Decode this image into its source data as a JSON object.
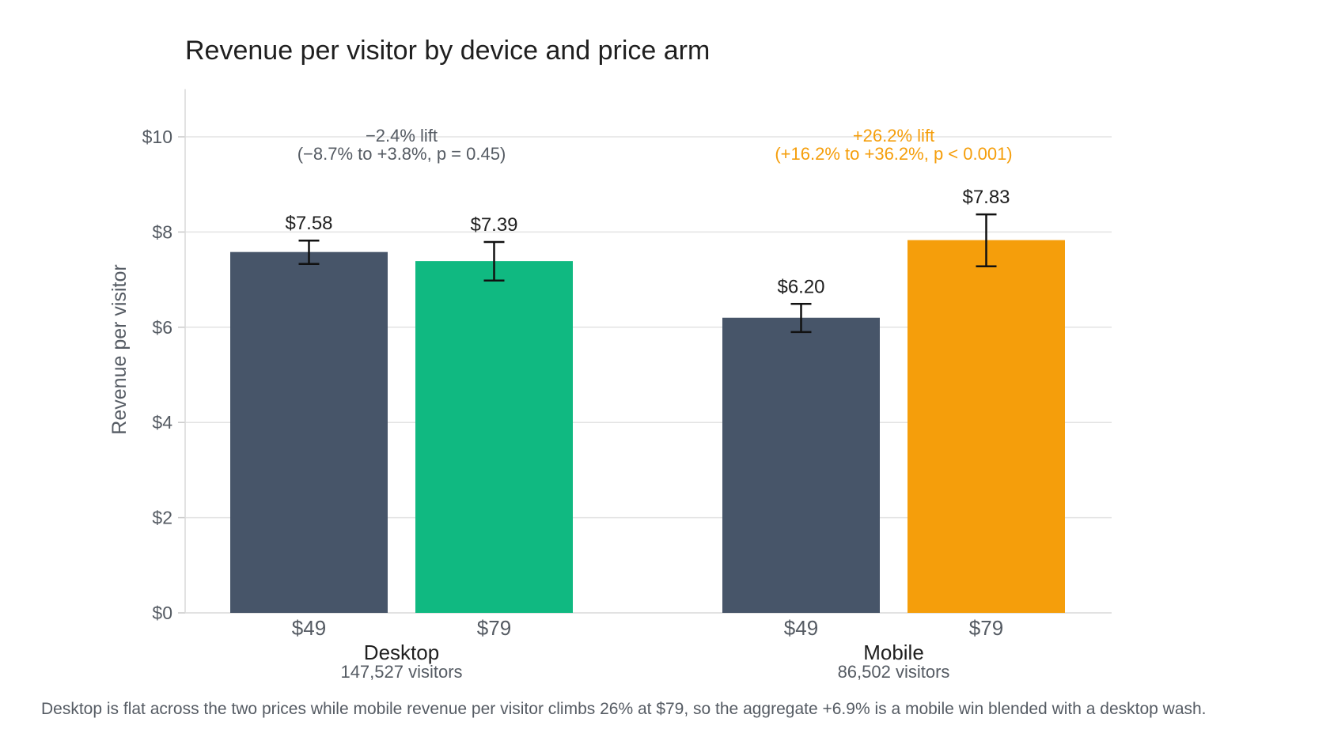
{
  "chart_data": {
    "type": "bar",
    "title": "Revenue per visitor by device and price arm",
    "ylabel": "Revenue per visitor",
    "ylim": [
      0,
      11
    ],
    "yticks": [
      0,
      2,
      4,
      6,
      8,
      10
    ],
    "ytick_labels": [
      "$0",
      "$2",
      "$4",
      "$6",
      "$8",
      "$10"
    ],
    "grid": true,
    "groups": [
      {
        "name": "Desktop",
        "subtitle": "147,527 visitors",
        "annotation": {
          "line1": "−2.4% lift",
          "line2": "(−8.7% to +3.8%, p = 0.45)",
          "color": "#555b63"
        },
        "bars": [
          {
            "arm": "$49",
            "value": 7.58,
            "ci": [
              7.33,
              7.82
            ],
            "label": "$7.58",
            "color": "#475569"
          },
          {
            "arm": "$79",
            "value": 7.39,
            "ci": [
              6.98,
              7.79
            ],
            "label": "$7.39",
            "color": "#10b981"
          }
        ]
      },
      {
        "name": "Mobile",
        "subtitle": "86,502 visitors",
        "annotation": {
          "line1": "+26.2% lift",
          "line2": "(+16.2% to +36.2%, p < 0.001)",
          "color": "#f59e0b"
        },
        "bars": [
          {
            "arm": "$49",
            "value": 6.2,
            "ci": [
              5.9,
              6.49
            ],
            "label": "$6.20",
            "color": "#475569"
          },
          {
            "arm": "$79",
            "value": 7.83,
            "ci": [
              7.28,
              8.37
            ],
            "label": "$7.83",
            "color": "#f59e0b"
          }
        ]
      }
    ],
    "caption": "Desktop is flat across the two prices while mobile revenue per visitor climbs 26% at $79, so the aggregate +6.9% is a mobile win blended with a desktop wash."
  }
}
